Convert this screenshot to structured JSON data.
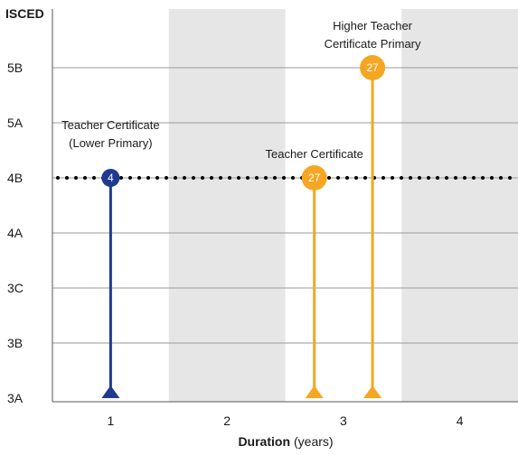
{
  "chart_data": {
    "type": "lollipop",
    "ylabel": "ISCED",
    "xlabel": "Duration",
    "xlabel_unit": "(years)",
    "y_categories": [
      "3A",
      "3B",
      "3C",
      "4A",
      "4B",
      "5A",
      "5B"
    ],
    "x_ticks": [
      "1",
      "2",
      "3",
      "4"
    ],
    "xlim": [
      0.5,
      4.5
    ],
    "shaded_x_bands": [
      [
        1.5,
        2.5
      ],
      [
        3.5,
        4.5
      ]
    ],
    "reference_level": "4B",
    "grid": true,
    "series": [
      {
        "name": "Teacher Certificate (Lower Primary)",
        "label_lines": [
          "Teacher Certificate",
          "(Lower Primary)"
        ],
        "x": 1.0,
        "level": "4B",
        "value": "4",
        "color": "#1f3a8f"
      },
      {
        "name": "Teacher Certificate",
        "label_lines": [
          "Teacher Certificate"
        ],
        "x": 2.75,
        "level": "4B",
        "value": "27",
        "color": "#f5a623"
      },
      {
        "name": "Higher Teacher Certificate Primary",
        "label_lines": [
          "Higher Teacher",
          "Certificate Primary"
        ],
        "x": 3.25,
        "level": "5B",
        "value": "27",
        "color": "#f5a623"
      }
    ]
  }
}
